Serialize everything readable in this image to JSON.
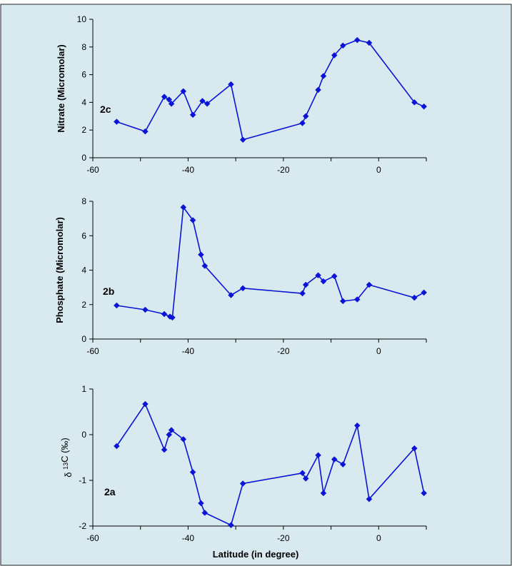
{
  "colors": {
    "panel_bg": "#d8eaf0",
    "series": "#0a14d6",
    "axis": "#000000",
    "frame": "#222222"
  },
  "x_axis_title": "Latitude (in degree)",
  "chart_data": [
    {
      "type": "line",
      "panel_label": "2c",
      "ylabel": "Nitrate (Micromolar)",
      "xlim": [
        -60,
        10
      ],
      "ylim": [
        0,
        10
      ],
      "x_ticks": [
        -60,
        -40,
        -20,
        0
      ],
      "y_ticks": [
        0,
        2,
        4,
        6,
        8,
        10
      ],
      "grid": false,
      "x": [
        -55,
        -49,
        -45,
        -44,
        -43.5,
        -41,
        -39,
        -37,
        -36,
        -31,
        -28.5,
        -16,
        -15.3,
        -12.7,
        -11.6,
        -9.3,
        -7.5,
        -4.5,
        -2,
        7.5,
        9.5
      ],
      "y": [
        2.6,
        1.9,
        4.4,
        4.2,
        3.9,
        4.8,
        3.1,
        4.1,
        3.9,
        5.3,
        1.3,
        2.5,
        3.0,
        4.9,
        5.9,
        7.4,
        8.1,
        8.5,
        8.3,
        4.0,
        3.7
      ]
    },
    {
      "type": "line",
      "panel_label": "2b",
      "ylabel": "Phosphate (Micromolar)",
      "xlim": [
        -60,
        10
      ],
      "ylim": [
        0,
        8
      ],
      "x_ticks": [
        -60,
        -40,
        -20,
        0
      ],
      "y_ticks": [
        0,
        2,
        4,
        6,
        8
      ],
      "grid": false,
      "x": [
        -55,
        -49,
        -45,
        -43.8,
        -43.3,
        -41,
        -39,
        -37.3,
        -36.5,
        -31,
        -28.5,
        -16,
        -15.3,
        -12.7,
        -11.6,
        -9.3,
        -7.5,
        -4.5,
        -2,
        7.5,
        9.5
      ],
      "y": [
        1.95,
        1.7,
        1.45,
        1.3,
        1.25,
        7.65,
        6.9,
        4.9,
        4.25,
        2.55,
        2.95,
        2.65,
        3.15,
        3.7,
        3.35,
        3.65,
        2.2,
        2.3,
        3.15,
        2.4,
        2.7
      ]
    },
    {
      "type": "line",
      "panel_label": "2a",
      "ylabel": "δ 13C (‰)",
      "xlim": [
        -60,
        10
      ],
      "ylim": [
        -2,
        1
      ],
      "x_ticks": [
        -60,
        -40,
        -20,
        0
      ],
      "y_ticks": [
        -2,
        -1,
        0,
        1
      ],
      "grid": false,
      "x": [
        -55,
        -49,
        -45,
        -44,
        -43.5,
        -41,
        -39,
        -37.3,
        -36.5,
        -31,
        -28.5,
        -16,
        -15.3,
        -12.7,
        -11.6,
        -9.3,
        -7.5,
        -4.5,
        -2,
        7.5,
        9.5
      ],
      "y": [
        -0.25,
        0.67,
        -0.33,
        0.0,
        0.1,
        -0.1,
        -0.82,
        -1.5,
        -1.71,
        -1.98,
        -1.07,
        -0.84,
        -0.96,
        -0.45,
        -1.28,
        -0.54,
        -0.65,
        0.2,
        -1.41,
        -0.3,
        -1.28
      ]
    }
  ]
}
